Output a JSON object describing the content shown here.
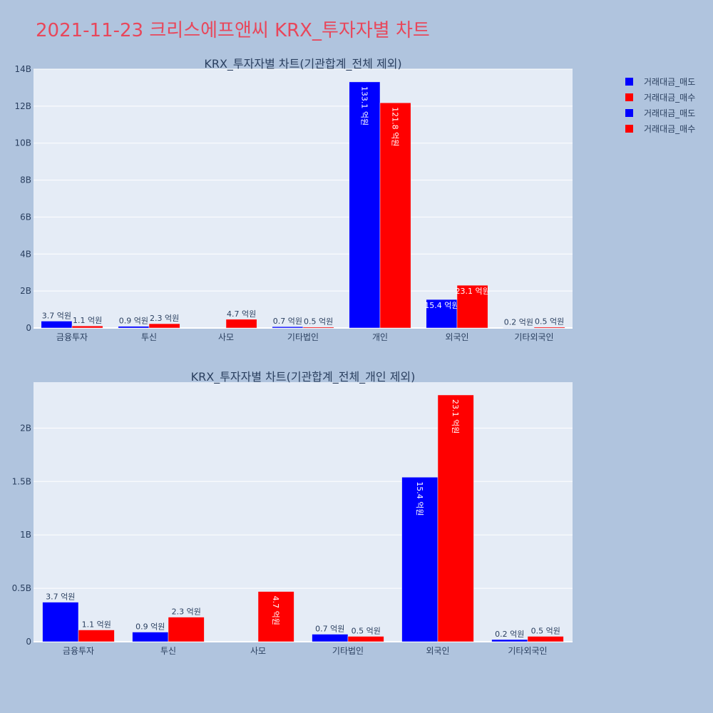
{
  "title": "2021-11-23 크리스에프앤씨 KRX_투자자별 차트",
  "colors": {
    "sell": "#0000ff",
    "buy": "#ff0000",
    "plot_bg": "#e5ecf6",
    "page_bg": "#b0c4de",
    "title": "#e8475b"
  },
  "legend": [
    "거래대금_매도",
    "거래대금_매수",
    "거래대금_매도",
    "거래대금_매수"
  ],
  "chart_data": [
    {
      "type": "bar",
      "title": "KRX_투자자별 차트(기관합계_전체 제외)",
      "categories": [
        "금융투자",
        "투신",
        "사모",
        "기타법인",
        "개인",
        "외국인",
        "기타외국인"
      ],
      "ylim": [
        0,
        14000000000
      ],
      "yticks": [
        0,
        2000000000,
        4000000000,
        6000000000,
        8000000000,
        10000000000,
        12000000000,
        14000000000
      ],
      "ytick_labels": [
        "0",
        "2B",
        "4B",
        "6B",
        "8B",
        "10B",
        "12B",
        "14B"
      ],
      "series": [
        {
          "name": "거래대금_매도",
          "color": "#0000ff",
          "values": [
            370000000,
            90000000,
            0,
            70000000,
            13310000000,
            1540000000,
            20000000
          ],
          "labels": [
            "3.7 억원",
            "0.9 억원",
            "",
            "0.7 억원",
            "133.1 억원",
            "15.4 억원",
            "0.2 억원"
          ]
        },
        {
          "name": "거래대금_매수",
          "color": "#ff0000",
          "values": [
            110000000,
            230000000,
            470000000,
            50000000,
            12180000000,
            2310000000,
            50000000
          ],
          "labels": [
            "1.1 억원",
            "2.3 억원",
            "4.7 억원",
            "0.5 억원",
            "121.8 억원",
            "23.1 억원",
            "0.5 억원"
          ]
        }
      ]
    },
    {
      "type": "bar",
      "title": "KRX_투자자별 차트(기관합계_전체_개인 제외)",
      "categories": [
        "금융투자",
        "투신",
        "사모",
        "기타법인",
        "외국인",
        "기타외국인"
      ],
      "ylim": [
        0,
        2430000000
      ],
      "yticks": [
        0,
        500000000,
        1000000000,
        1500000000,
        2000000000
      ],
      "ytick_labels": [
        "0",
        "0.5B",
        "1B",
        "1.5B",
        "2B"
      ],
      "series": [
        {
          "name": "거래대금_매도",
          "color": "#0000ff",
          "values": [
            370000000,
            90000000,
            0,
            70000000,
            1540000000,
            20000000
          ],
          "labels": [
            "3.7 억원",
            "0.9 억원",
            "",
            "0.7 억원",
            "15.4 억원",
            "0.2 억원"
          ]
        },
        {
          "name": "거래대금_매수",
          "color": "#ff0000",
          "values": [
            110000000,
            230000000,
            470000000,
            50000000,
            2310000000,
            50000000
          ],
          "labels": [
            "1.1 억원",
            "2.3 억원",
            "4.7 억원",
            "0.5 억원",
            "23.1 억원",
            "0.5 억원"
          ]
        }
      ]
    }
  ]
}
